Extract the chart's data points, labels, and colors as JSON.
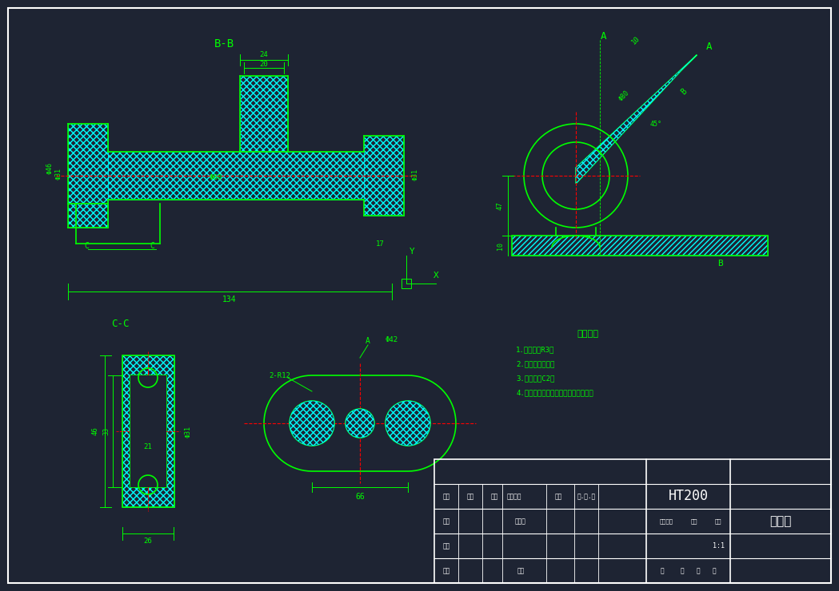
{
  "bg_color": "#1e2433",
  "line_color": "#00ff00",
  "red_color": "#ff0000",
  "white_color": "#ffffff",
  "cyan_color": "#00ffff",
  "hatch_color": "#00cccc",
  "title": "HT200",
  "drawing_title": "毛坏图",
  "tech_req_title": "技术要求",
  "tech_req": [
    "1.未注明角R3，",
    "2.外表面除锈锄，",
    "3.倒角均为C2。",
    "4.铸件不允许沙眼、缩孔等局部缺陷。"
  ],
  "section_bb": "B-B",
  "section_cc": "C-C",
  "label_a": "A",
  "scale": "1:1",
  "designer": "设计",
  "auditor": "审核",
  "process": "工艺",
  "standard": "标准化",
  "approve": "批准",
  "stage": "阶段标记",
  "weight": "重量",
  "ratio": "比例",
  "total_sheets": "共",
  "sheet": "张",
  "sheet_no": "第",
  "sheet_unit": "张",
  "mark": "标记",
  "count": "处数",
  "zone": "分区",
  "change": "更改件号",
  "signer": "签名",
  "date": "年.月.日"
}
